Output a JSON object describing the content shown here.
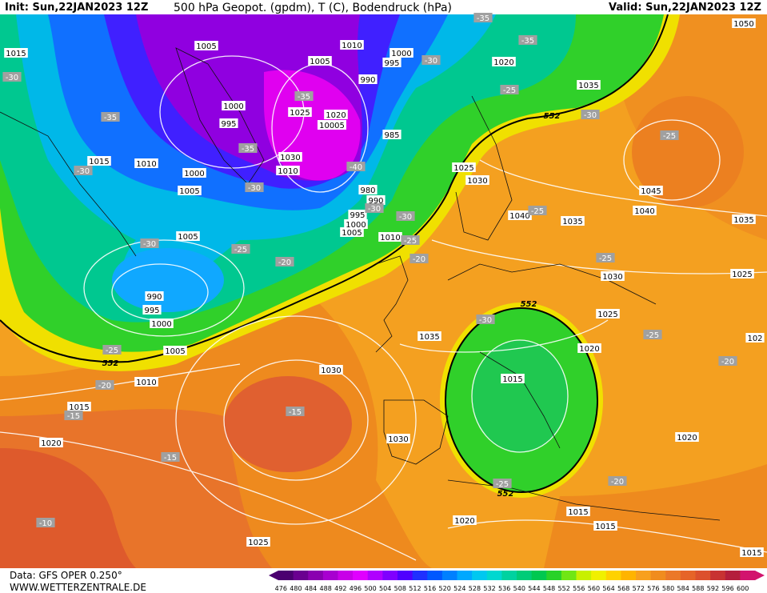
{
  "header": {
    "init": "Init: Sun,22JAN2023 12Z",
    "title": "500 hPa Geopot. (gpdm), T (C), Bodendruck (hPa)",
    "valid": "Valid: Sun,22JAN2023 12Z"
  },
  "map": {
    "isobar_labels": [
      "1015",
      "1005",
      "1010",
      "1005",
      "1000",
      "995",
      "1020",
      "1050",
      "990",
      "1035",
      "1000",
      "995",
      "1025",
      "1020",
      "10005",
      "985",
      "1015",
      "1010",
      "1000",
      "1030",
      "1010",
      "1025",
      "1030",
      "1005",
      "980",
      "990",
      "1045",
      "995",
      "1040",
      "1035",
      "1040",
      "1035",
      "1000",
      "1005",
      "1010",
      "1005",
      "1030",
      "1025",
      "990",
      "995",
      "1000",
      "1025",
      "1035",
      "1020",
      "1005",
      "1015",
      "1030",
      "1010",
      "1015",
      "102",
      "1020",
      "1030",
      "1020",
      "1015",
      "1015",
      "1020",
      "1025",
      "1015"
    ],
    "temperature_labels": [
      "-35",
      "-35",
      "-30",
      "-30",
      "-25",
      "-35",
      "-35",
      "-30",
      "-25",
      "-35",
      "-30",
      "-40",
      "-30",
      "-30",
      "-30",
      "-25",
      "-25",
      "-30",
      "-25",
      "-20",
      "-20",
      "-25",
      "-30",
      "-25",
      "-20",
      "-25",
      "-20",
      "-15",
      "-15",
      "-15",
      "-20",
      "-25",
      "-10"
    ],
    "contour_labels": [
      "552",
      "552",
      "552",
      "552"
    ]
  },
  "footer": {
    "data_source": "Data: GFS OPER 0.250°",
    "website": "WWW.WETTERZENTRALE.DE"
  },
  "colorbar": {
    "levels": [
      "476",
      "480",
      "484",
      "488",
      "492",
      "496",
      "500",
      "504",
      "508",
      "512",
      "516",
      "520",
      "524",
      "528",
      "532",
      "536",
      "540",
      "544",
      "548",
      "552",
      "556",
      "560",
      "564",
      "568",
      "572",
      "576",
      "580",
      "584",
      "588",
      "592",
      "596",
      "600"
    ],
    "colors": [
      "#4b0070",
      "#6a0090",
      "#8a00b0",
      "#a800d0",
      "#c800e8",
      "#e000ff",
      "#b000ff",
      "#8000ff",
      "#5000ff",
      "#2030ff",
      "#0058ff",
      "#0080ff",
      "#00a8ff",
      "#00c8f0",
      "#00d8d0",
      "#00d2a0",
      "#00cc78",
      "#00c850",
      "#28d228",
      "#70e614",
      "#c8f000",
      "#f0f000",
      "#ffd200",
      "#ffb400",
      "#f8a01e",
      "#f08c1e",
      "#eb7828",
      "#e66428",
      "#dc502d",
      "#c83232",
      "#b41e3c",
      "#d2146e"
    ]
  }
}
